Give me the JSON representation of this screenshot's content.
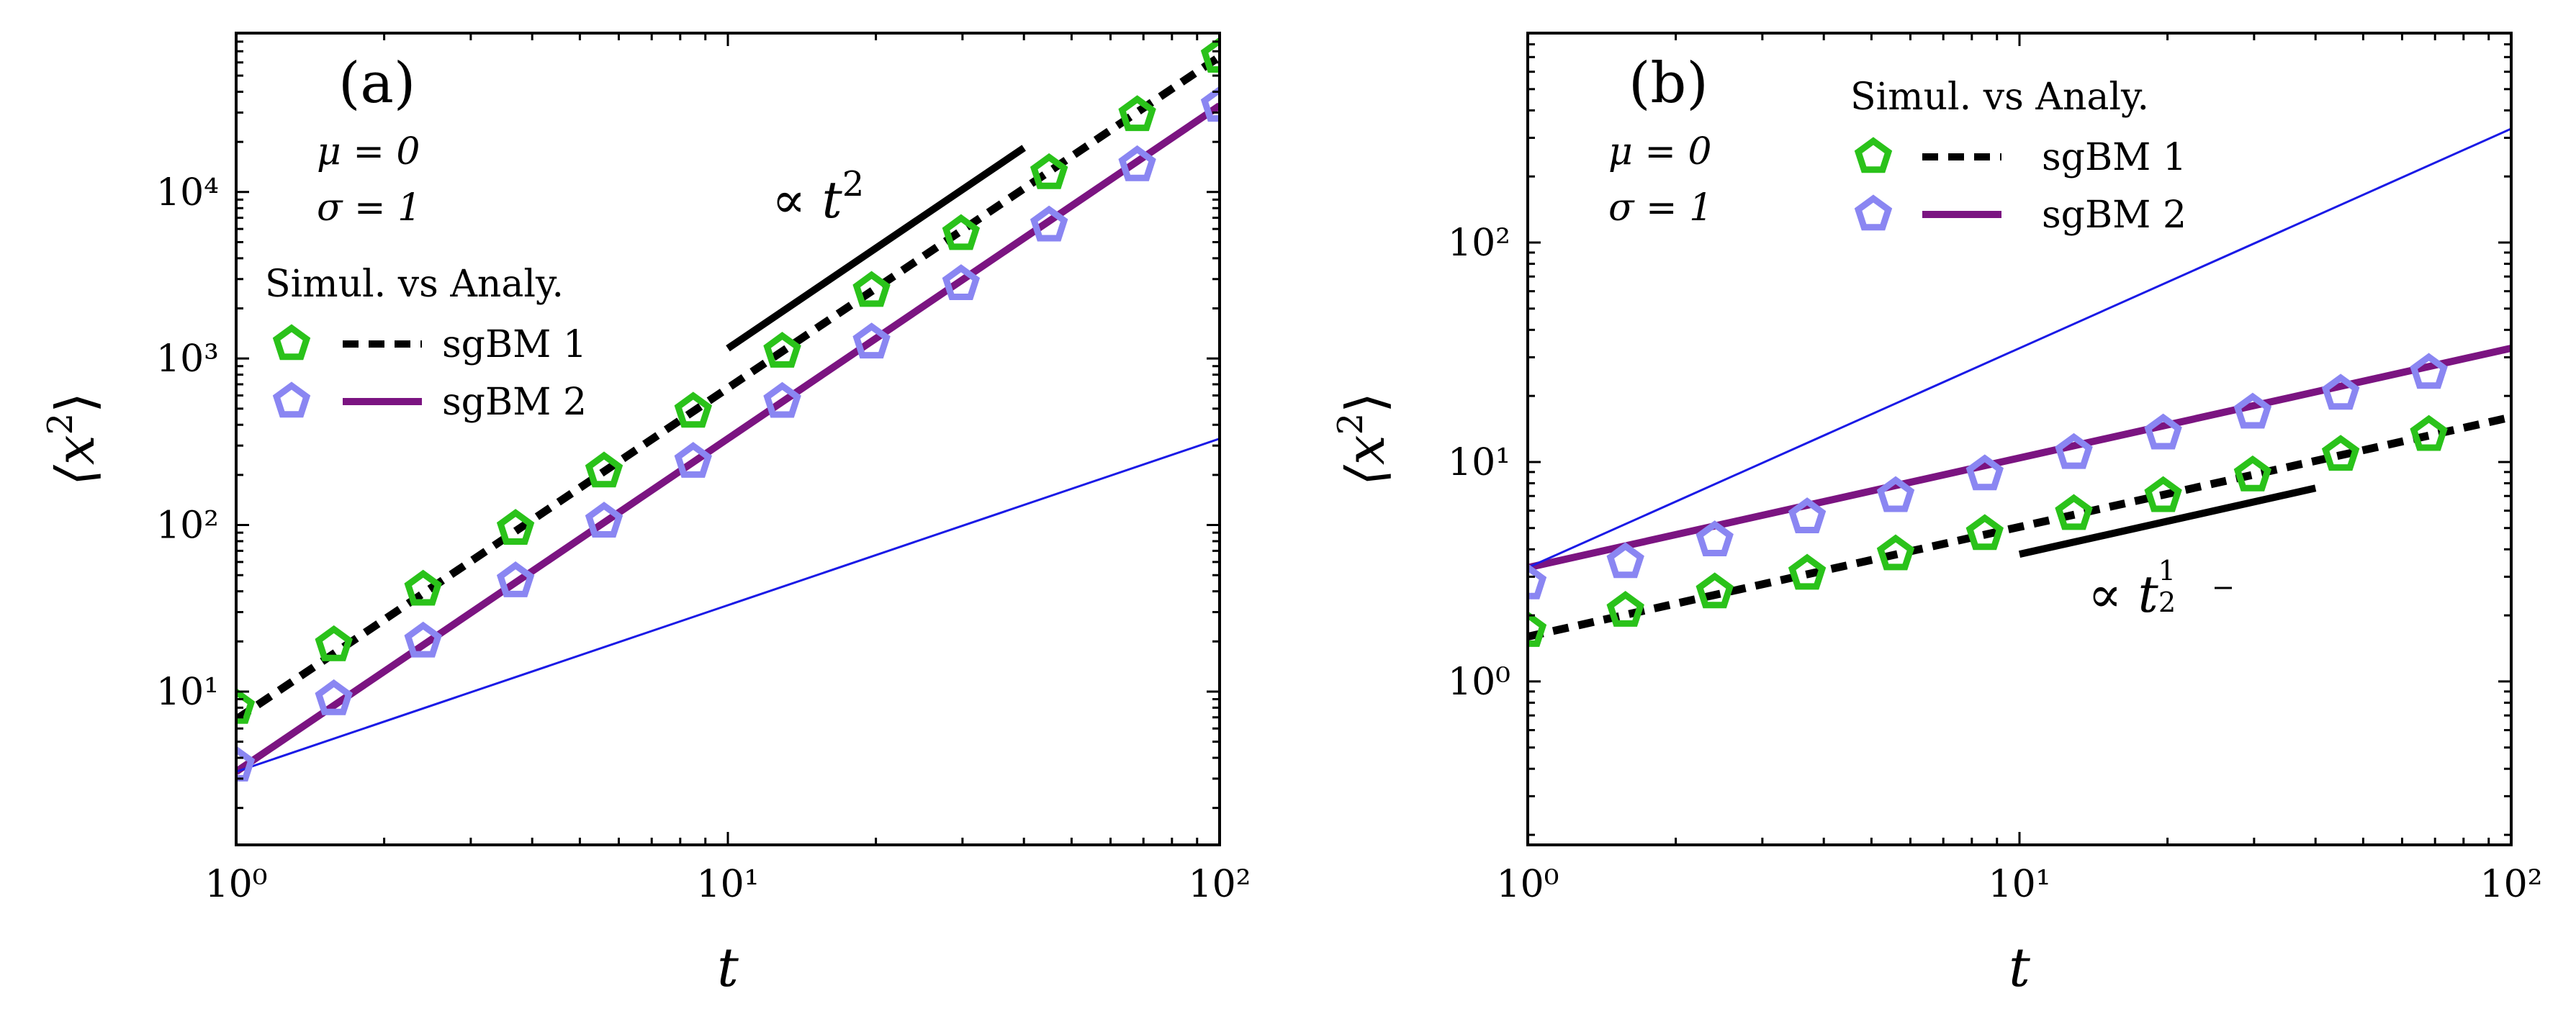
{
  "chart_data": [
    {
      "type": "line",
      "panel": "(a)",
      "x_scale": "log",
      "y_scale": "log",
      "xlabel": "t",
      "ylabel": "⟨x²⟩",
      "xlim": [
        1,
        100
      ],
      "ylim": [
        1.2,
        90000
      ],
      "params": [
        "μ = 0",
        "σ = 1"
      ],
      "legend_title": "Simul. vs Analy.",
      "legend": [
        "sgBM 1",
        "sgBM 2"
      ],
      "slope_label": "∝ t²",
      "slope_segment": {
        "x": [
          10,
          40
        ],
        "y": [
          1150,
          18400
        ]
      },
      "x_tick_labels": [
        "10⁰",
        "10¹",
        "10²"
      ],
      "y_tick_labels": [
        "10¹",
        "10²",
        "10³",
        "10⁴"
      ],
      "series": [
        {
          "name": "sgBM 1",
          "kind": "markers",
          "marker": "pentagon",
          "color": "#2ac21a",
          "x": [
            1,
            1.58,
            2.4,
            3.7,
            5.6,
            8.5,
            12.9,
            19.6,
            29.8,
            45,
            68,
            100
          ],
          "y": [
            8,
            19,
            41,
            95,
            210,
            480,
            1100,
            2550,
            5600,
            13000,
            29000,
            65000
          ]
        },
        {
          "name": "sgBM 2",
          "kind": "markers",
          "marker": "pentagon",
          "color": "#8a86f2",
          "x": [
            1,
            1.58,
            2.4,
            3.7,
            5.6,
            8.5,
            12.9,
            19.6,
            29.8,
            45,
            68,
            100
          ],
          "y": [
            3.6,
            9,
            20,
            46,
            105,
            240,
            550,
            1250,
            2800,
            6300,
            14500,
            33000
          ]
        },
        {
          "name": "sgBM 1",
          "kind": "line",
          "style": "dashed",
          "color": "#000000",
          "x": [
            1,
            100
          ],
          "y": [
            6.8,
            65000
          ]
        },
        {
          "name": "sgBM 2",
          "kind": "line",
          "style": "solid",
          "color": "#7b1481",
          "x": [
            1,
            100
          ],
          "y": [
            3.3,
            33000
          ]
        },
        {
          "kind": "line",
          "style": "thin",
          "color": "#1a1ae6",
          "x": [
            1,
            100
          ],
          "y": [
            3.3,
            330
          ]
        }
      ]
    },
    {
      "type": "line",
      "panel": "(b)",
      "x_scale": "log",
      "y_scale": "log",
      "xlabel": "t",
      "ylabel": "⟨x²⟩",
      "xlim": [
        1,
        100
      ],
      "ylim": [
        0.18,
        900
      ],
      "params": [
        "μ = 0",
        "σ = 1"
      ],
      "legend_title": "Simul. vs Analy.",
      "legend": [
        "sgBM 1",
        "sgBM 2"
      ],
      "slope_label": "∝ t^(1/2)",
      "slope_segment": {
        "x": [
          10,
          40
        ],
        "y": [
          3.8,
          7.6
        ]
      },
      "x_tick_labels": [
        "10⁰",
        "10¹",
        "10²"
      ],
      "y_tick_labels": [
        "10⁰",
        "10¹",
        "10²"
      ],
      "series": [
        {
          "name": "sgBM 1",
          "kind": "markers",
          "marker": "pentagon",
          "color": "#2ac21a",
          "x": [
            1,
            1.58,
            2.4,
            3.7,
            5.6,
            8.5,
            12.9,
            19.6,
            29.8,
            45,
            68
          ],
          "y": [
            1.7,
            2.1,
            2.55,
            3.1,
            3.8,
            4.7,
            5.8,
            7.0,
            8.7,
            10.8,
            13.3
          ]
        },
        {
          "name": "sgBM 2",
          "kind": "markers",
          "marker": "pentagon",
          "color": "#8a86f2",
          "x": [
            1,
            1.58,
            2.4,
            3.7,
            5.6,
            8.5,
            12.9,
            19.6,
            29.8,
            45,
            68
          ],
          "y": [
            2.8,
            3.5,
            4.4,
            5.6,
            7.0,
            8.8,
            11.0,
            13.5,
            16.8,
            20.5,
            25.5
          ]
        },
        {
          "name": "sgBM 1",
          "kind": "line",
          "style": "dashed",
          "color": "#000000",
          "x": [
            1,
            100
          ],
          "y": [
            1.6,
            16
          ]
        },
        {
          "name": "sgBM 2",
          "kind": "line",
          "style": "solid",
          "color": "#7b1481",
          "x": [
            1,
            100
          ],
          "y": [
            3.3,
            33
          ]
        },
        {
          "kind": "line",
          "style": "thin",
          "color": "#1a1ae6",
          "x": [
            1,
            100
          ],
          "y": [
            3.3,
            330
          ]
        }
      ]
    }
  ]
}
